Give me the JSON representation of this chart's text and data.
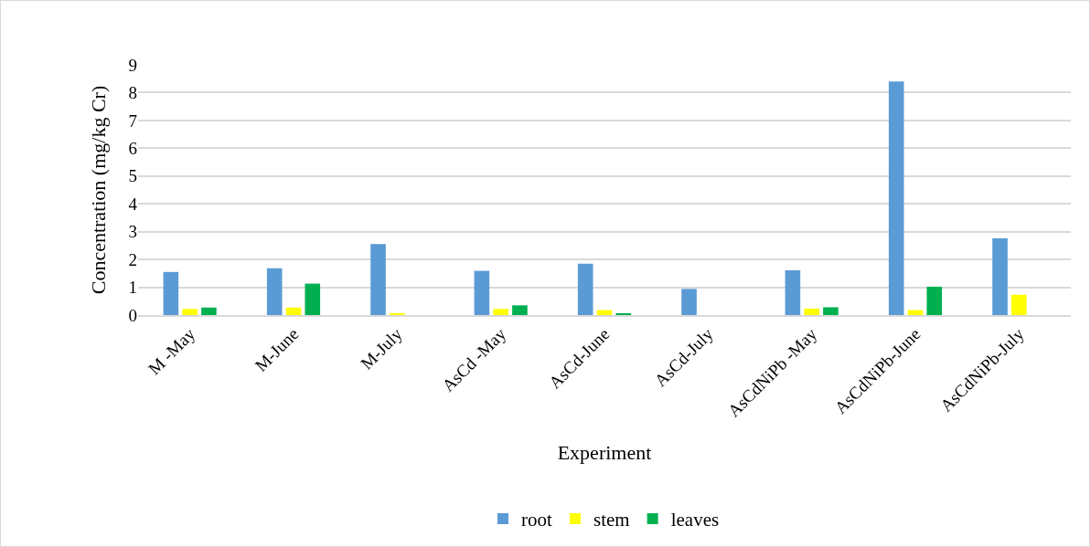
{
  "chart_data": {
    "type": "bar",
    "xlabel": "Experiment",
    "ylabel": "Concentration (mg/kg Cr)",
    "categories": [
      "M -May",
      "M-June",
      "M-July",
      "AsCd -May",
      "AsCd-June",
      "AsCd-July",
      "AsCdNiPb -May",
      "AsCdNiPb-June",
      "AsCdNiPb-July"
    ],
    "series": [
      {
        "name": "root",
        "color": "#5b9bd5",
        "values": [
          1.55,
          1.68,
          2.55,
          1.59,
          1.85,
          0.94,
          1.61,
          8.4,
          2.76
        ]
      },
      {
        "name": "stem",
        "color": "#ffff00",
        "values": [
          0.22,
          0.27,
          0.07,
          0.22,
          0.18,
          0,
          0.23,
          0.18,
          0.73
        ]
      },
      {
        "name": "leaves",
        "color": "#00b050",
        "values": [
          0.27,
          1.13,
          0,
          0.35,
          0.06,
          0,
          0.28,
          1.02,
          0
        ]
      }
    ],
    "ylim": [
      0,
      9
    ],
    "yticks": [
      0,
      1,
      2,
      3,
      4,
      5,
      6,
      7,
      8,
      9
    ],
    "grid": "y",
    "legend": "bottom"
  }
}
